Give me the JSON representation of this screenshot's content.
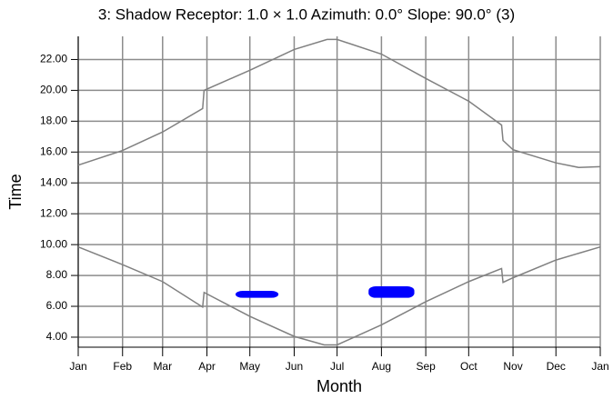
{
  "chart_data": {
    "type": "line",
    "title": "3: Shadow  Receptor: 1.0 × 1.0  Azimuth: 0.0°  Slope: 90.0° (3)",
    "x_label": "Month",
    "y_label": "Time",
    "xlim": [
      0,
      365
    ],
    "ylim": [
      3.35,
      23.5
    ],
    "xticks": [
      {
        "value": 0,
        "label": "Jan"
      },
      {
        "value": 31,
        "label": "Feb"
      },
      {
        "value": 59,
        "label": "Mar"
      },
      {
        "value": 90,
        "label": "Apr"
      },
      {
        "value": 120,
        "label": "May"
      },
      {
        "value": 151,
        "label": "Jun"
      },
      {
        "value": 181,
        "label": "Jul"
      },
      {
        "value": 212,
        "label": "Aug"
      },
      {
        "value": 243,
        "label": "Sep"
      },
      {
        "value": 273,
        "label": "Oct"
      },
      {
        "value": 304,
        "label": "Nov"
      },
      {
        "value": 334,
        "label": "Dec"
      },
      {
        "value": 365,
        "label": "Jan"
      }
    ],
    "yticks": [
      {
        "value": 4,
        "label": "4.00"
      },
      {
        "value": 6,
        "label": "6.00"
      },
      {
        "value": 8,
        "label": "8.00"
      },
      {
        "value": 10,
        "label": "10.00"
      },
      {
        "value": 12,
        "label": "12.00"
      },
      {
        "value": 14,
        "label": "14.00"
      },
      {
        "value": 16,
        "label": "16.00"
      },
      {
        "value": 18,
        "label": "18.00"
      },
      {
        "value": 20,
        "label": "20.00"
      },
      {
        "value": 22,
        "label": "22.00"
      }
    ],
    "grid": true,
    "series": [
      {
        "color": "#808080",
        "x": [
          0,
          31,
          59,
          87,
          88,
          120,
          151,
          174,
          181,
          212,
          243,
          273,
          296,
          297,
          304,
          334,
          350,
          365
        ],
        "values": [
          15.15,
          16.1,
          17.3,
          18.82,
          20.0,
          21.3,
          22.65,
          23.3,
          23.3,
          22.35,
          20.77,
          19.3,
          17.75,
          16.75,
          16.15,
          15.3,
          15.0,
          15.05
        ]
      },
      {
        "color": "#808080",
        "x": [
          0,
          31,
          59,
          87,
          88,
          120,
          151,
          172,
          181,
          212,
          243,
          273,
          296,
          297,
          304,
          334,
          365
        ],
        "values": [
          9.85,
          8.7,
          7.6,
          5.95,
          6.9,
          5.35,
          4.05,
          3.5,
          3.5,
          4.8,
          6.3,
          7.6,
          8.45,
          7.55,
          7.85,
          9.0,
          9.85
        ]
      }
    ],
    "regions": [
      {
        "color": "#0000ff",
        "x": [
          110,
          140
        ],
        "y": [
          6.55,
          7.0
        ]
      },
      {
        "color": "#0000ff",
        "x": [
          203,
          235
        ],
        "y": [
          6.55,
          7.3
        ]
      }
    ]
  }
}
